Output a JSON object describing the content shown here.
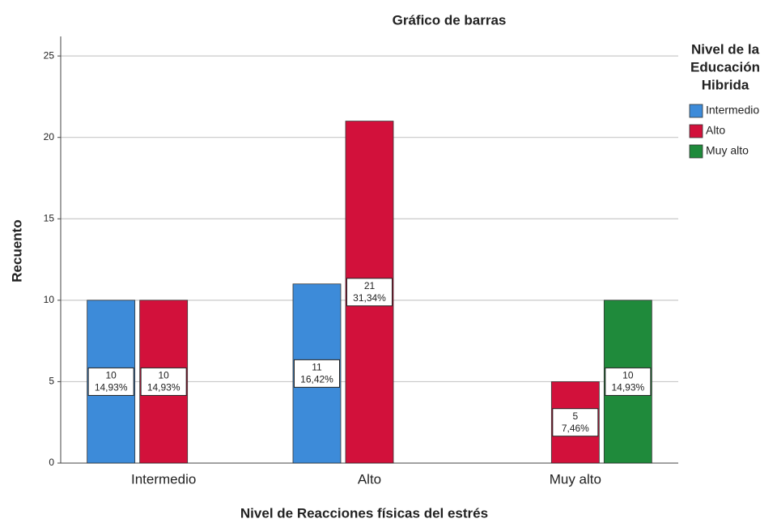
{
  "chart_data": {
    "type": "bar",
    "title": "Gráfico de barras",
    "x_label": "Nivel de Reacciones físicas del estrés",
    "y_label": "Recuento",
    "legend_title": [
      "Nivel de la",
      "Educación",
      "Hibrida"
    ],
    "legend_position": "right",
    "categories": [
      "Intermedio",
      "Alto",
      "Muy alto"
    ],
    "series": [
      {
        "name": "Intermedio",
        "color": "#3d8bd9",
        "values": [
          10,
          11,
          null
        ],
        "percentages": [
          14.93,
          16.42,
          null
        ],
        "percentage_labels": [
          "14,93%",
          "16,42%",
          null
        ]
      },
      {
        "name": "Alto",
        "color": "#d2113b",
        "values": [
          10,
          21,
          5
        ],
        "percentages": [
          14.93,
          31.34,
          7.46
        ],
        "percentage_labels": [
          "14,93%",
          "31,34%",
          "7,46%"
        ]
      },
      {
        "name": "Muy alto",
        "color": "#1f8a3b",
        "values": [
          null,
          null,
          10
        ],
        "percentages": [
          null,
          null,
          14.93
        ],
        "percentage_labels": [
          null,
          null,
          "14,93%"
        ]
      }
    ],
    "ylim": [
      0,
      26.2
    ],
    "yticks": [
      0,
      5,
      10,
      15,
      20,
      25
    ],
    "grid": true
  }
}
